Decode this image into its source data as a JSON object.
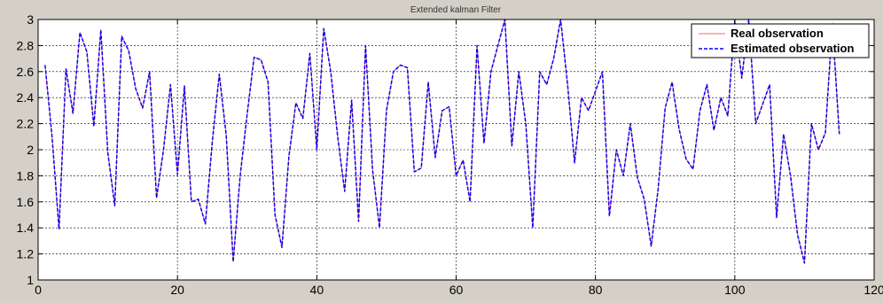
{
  "chart_data": {
    "type": "line",
    "title": "Extended kalman Filter",
    "xlabel": "",
    "ylabel": "",
    "xlim": [
      0,
      120
    ],
    "ylim": [
      1,
      3
    ],
    "xticks": [
      0,
      20,
      40,
      60,
      80,
      100,
      120
    ],
    "yticks": [
      1,
      1.2,
      1.4,
      1.6,
      1.8,
      2,
      2.2,
      2.4,
      2.6,
      2.8,
      3
    ],
    "grid": true,
    "legend_position": "top-right",
    "x": [
      1,
      2,
      3,
      4,
      5,
      6,
      7,
      8,
      9,
      10,
      11,
      12,
      13,
      14,
      15,
      16,
      17,
      18,
      19,
      20,
      21,
      22,
      23,
      24,
      25,
      26,
      27,
      28,
      29,
      30,
      31,
      32,
      33,
      34,
      35,
      36,
      37,
      38,
      39,
      40,
      41,
      42,
      43,
      44,
      45,
      46,
      47,
      48,
      49,
      50,
      51,
      52,
      53,
      54,
      55,
      56,
      57,
      58,
      59,
      60,
      61,
      62,
      63,
      64,
      65,
      66,
      67,
      68,
      69,
      70,
      71,
      72,
      73,
      74,
      75,
      76,
      77,
      78,
      79,
      80,
      81,
      82,
      83,
      84,
      85,
      86,
      87,
      88,
      89,
      90,
      91,
      92,
      93,
      94,
      95,
      96,
      97,
      98,
      99,
      100,
      101,
      102,
      103,
      104,
      105,
      106,
      107,
      108,
      109,
      110,
      111,
      112,
      113,
      114,
      115
    ],
    "series": [
      {
        "name": "Real observation",
        "color": "#ff6666",
        "style": "solid",
        "values": [
          2.65,
          2.1,
          1.39,
          2.62,
          2.28,
          2.9,
          2.75,
          2.18,
          2.92,
          1.98,
          1.57,
          2.87,
          2.76,
          2.47,
          2.32,
          2.6,
          1.63,
          2.0,
          2.5,
          1.81,
          2.49,
          1.6,
          1.62,
          1.43,
          2.06,
          2.58,
          2.11,
          1.14,
          1.8,
          2.27,
          2.71,
          2.69,
          2.52,
          1.5,
          1.25,
          1.95,
          2.36,
          2.24,
          2.74,
          2.0,
          2.93,
          2.6,
          2.1,
          1.68,
          2.38,
          1.45,
          2.8,
          1.85,
          1.4,
          2.3,
          2.6,
          2.65,
          2.63,
          1.83,
          1.86,
          2.52,
          1.94,
          2.3,
          2.33,
          1.8,
          1.92,
          1.6,
          2.8,
          2.05,
          2.6,
          2.8,
          3.0,
          2.03,
          2.6,
          2.2,
          1.4,
          2.6,
          2.5,
          2.7,
          3.0,
          2.5,
          1.9,
          2.4,
          2.3,
          2.45,
          2.6,
          1.49,
          2.0,
          1.8,
          2.2,
          1.79,
          1.62,
          1.26,
          1.7,
          2.32,
          2.52,
          2.16,
          1.93,
          1.85,
          2.3,
          2.5,
          2.15,
          2.4,
          2.26,
          2.99,
          2.55,
          3.0,
          2.2,
          2.35,
          2.5,
          1.48,
          2.12,
          1.8,
          1.35,
          1.13,
          2.2,
          2.0,
          2.13,
          2.97,
          2.12
        ]
      },
      {
        "name": "Estimated observation",
        "color": "#0000ff",
        "style": "dashed",
        "values": [
          2.65,
          2.1,
          1.39,
          2.62,
          2.28,
          2.9,
          2.75,
          2.18,
          2.92,
          1.98,
          1.57,
          2.87,
          2.76,
          2.47,
          2.32,
          2.6,
          1.63,
          2.0,
          2.5,
          1.81,
          2.49,
          1.6,
          1.62,
          1.43,
          2.06,
          2.58,
          2.11,
          1.14,
          1.8,
          2.27,
          2.71,
          2.69,
          2.52,
          1.5,
          1.25,
          1.95,
          2.36,
          2.24,
          2.74,
          2.0,
          2.93,
          2.6,
          2.1,
          1.68,
          2.38,
          1.45,
          2.8,
          1.85,
          1.4,
          2.3,
          2.6,
          2.65,
          2.63,
          1.83,
          1.86,
          2.52,
          1.94,
          2.3,
          2.33,
          1.8,
          1.92,
          1.6,
          2.8,
          2.05,
          2.6,
          2.8,
          3.0,
          2.03,
          2.6,
          2.2,
          1.4,
          2.6,
          2.5,
          2.7,
          3.0,
          2.5,
          1.9,
          2.4,
          2.3,
          2.45,
          2.6,
          1.49,
          2.0,
          1.8,
          2.2,
          1.79,
          1.62,
          1.26,
          1.7,
          2.32,
          2.52,
          2.16,
          1.93,
          1.85,
          2.3,
          2.5,
          2.15,
          2.4,
          2.26,
          2.99,
          2.55,
          3.0,
          2.2,
          2.35,
          2.5,
          1.48,
          2.12,
          1.8,
          1.35,
          1.13,
          2.2,
          2.0,
          2.13,
          2.97,
          2.12
        ]
      }
    ]
  }
}
